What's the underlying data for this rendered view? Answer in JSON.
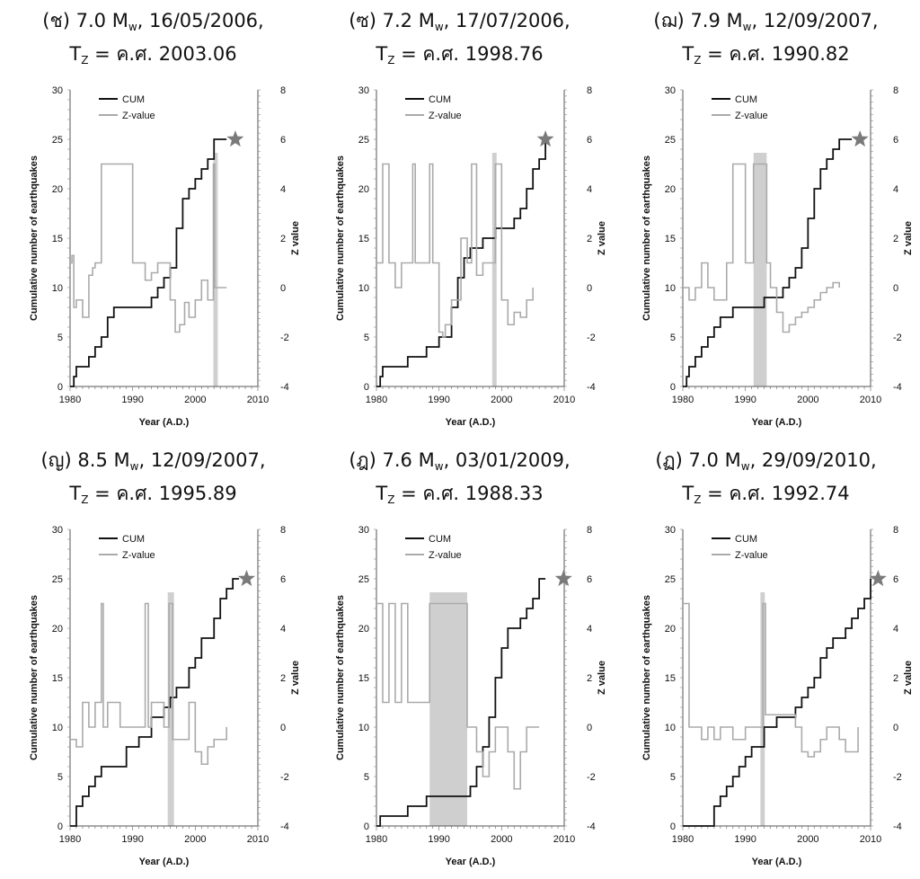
{
  "chart_data": [
    {
      "type": "line",
      "panel_label": "(ช)",
      "magnitude": "7.0",
      "mag_unit": "M",
      "mag_sub": "w",
      "date": "16/05/2006",
      "tz_label": "T",
      "tz_sub": "Z",
      "tz_value": "= ค.ศ. 2003.06",
      "xlabel": "Year (A.D.)",
      "ylabel": "Cumulative number of earthquakes",
      "y2label": "Z value",
      "xlim": [
        1980,
        2010
      ],
      "ylim": [
        0,
        30
      ],
      "y2lim": [
        -4,
        8
      ],
      "xticks": [
        1980,
        1990,
        2000,
        2010
      ],
      "yticks": [
        0,
        5,
        10,
        15,
        20,
        25,
        30
      ],
      "y2ticks": [
        -4,
        -2,
        0,
        2,
        4,
        6,
        8
      ],
      "highlight": [
        2002.9,
        2003.6
      ],
      "event": [
        2006.4,
        25
      ],
      "series": [
        {
          "name": "CUM",
          "color": "#111111",
          "x": [
            1980,
            1980.6,
            1981,
            1982,
            1983,
            1984,
            1985,
            1986,
            1987,
            1992,
            1993,
            1994,
            1995,
            1996,
            1997,
            1998,
            1999,
            2000,
            2001,
            2002,
            2003,
            2004,
            2005
          ],
          "y": [
            0,
            1,
            2,
            2,
            3,
            4,
            5,
            7,
            8,
            8,
            9,
            10,
            11,
            12,
            16,
            19,
            20,
            21,
            22,
            23,
            25,
            25,
            25
          ]
        },
        {
          "name": "Z-value",
          "color": "#aaaaaa",
          "x": [
            1980,
            1980.3,
            1980.6,
            1981,
            1982,
            1983,
            1983.6,
            1984,
            1985,
            1990,
            1992,
            1993,
            1994,
            1995,
            1996,
            1996.8,
            1997.5,
            1998.3,
            1999,
            2000,
            2001,
            2002,
            2002.9,
            2003.1,
            2003.8,
            2005
          ],
          "y": [
            1,
            1.3,
            -0.8,
            -0.5,
            -1.2,
            0.5,
            0.8,
            1,
            5,
            1,
            0.3,
            0.6,
            1,
            1,
            -0.5,
            -1.8,
            -1.5,
            -0.6,
            -1.2,
            -0.5,
            0.3,
            -0.5,
            5,
            0,
            0,
            0
          ]
        }
      ]
    },
    {
      "type": "line",
      "panel_label": "(ซ)",
      "magnitude": "7.2",
      "mag_unit": "M",
      "mag_sub": "w",
      "date": "17/07/2006",
      "tz_label": "T",
      "tz_sub": "Z",
      "tz_value": "= ค.ศ. 1998.76",
      "xlabel": "Year (A.D.)",
      "ylabel": "Cumulative number of earthquakes",
      "y2label": "Z value",
      "xlim": [
        1980,
        2010
      ],
      "ylim": [
        0,
        30
      ],
      "y2lim": [
        -4,
        8
      ],
      "xticks": [
        1980,
        1990,
        2000,
        2010
      ],
      "yticks": [
        0,
        5,
        10,
        15,
        20,
        25,
        30
      ],
      "y2ticks": [
        -4,
        -2,
        0,
        2,
        4,
        6,
        8
      ],
      "highlight": [
        1998.5,
        1999.2
      ],
      "event": [
        2007,
        25
      ],
      "series": [
        {
          "name": "CUM",
          "color": "#111111",
          "x": [
            1980,
            1980.6,
            1981,
            1983,
            1985,
            1988,
            1990,
            1991,
            1992,
            1993,
            1994,
            1995,
            1997,
            1999,
            2000,
            2002,
            2003,
            2004,
            2005,
            2006,
            2007
          ],
          "y": [
            0,
            1,
            2,
            2,
            3,
            4,
            5,
            5,
            8,
            11,
            13,
            14,
            15,
            16,
            16,
            17,
            18,
            20,
            22,
            23,
            25
          ]
        },
        {
          "name": "Z-value",
          "color": "#aaaaaa",
          "x": [
            1980,
            1981,
            1982,
            1983,
            1984,
            1985,
            1985.8,
            1986.2,
            1987,
            1988.5,
            1989,
            1990,
            1990.6,
            1991,
            1992,
            1993.5,
            1994.5,
            1995.2,
            1996,
            1997,
            1999,
            2000,
            2001,
            2002,
            2003,
            2004,
            2005
          ],
          "y": [
            1,
            5,
            1,
            0,
            1,
            1,
            5,
            1,
            1,
            5,
            1,
            -1.8,
            -2,
            -1.5,
            -0.5,
            2,
            1,
            5,
            0.5,
            1,
            5,
            -0.5,
            -1.5,
            -1,
            -1.2,
            -0.5,
            0
          ]
        }
      ]
    },
    {
      "type": "line",
      "panel_label": "(ฌ)",
      "magnitude": "7.9",
      "mag_unit": "M",
      "mag_sub": "w",
      "date": "12/09/2007",
      "tz_label": "T",
      "tz_sub": "Z",
      "tz_value": "= ค.ศ. 1990.82",
      "xlabel": "Year (A.D.)",
      "ylabel": "Cumulative number of earthquakes",
      "y2label": "Z value",
      "xlim": [
        1980,
        2010
      ],
      "ylim": [
        0,
        30
      ],
      "y2lim": [
        -4,
        8
      ],
      "xticks": [
        1980,
        1990,
        2000,
        2010
      ],
      "yticks": [
        0,
        5,
        10,
        15,
        20,
        25,
        30
      ],
      "y2ticks": [
        -4,
        -2,
        0,
        2,
        4,
        6,
        8
      ],
      "highlight": [
        1991.3,
        1993.4
      ],
      "event": [
        2008.3,
        25
      ],
      "series": [
        {
          "name": "CUM",
          "color": "#111111",
          "x": [
            1980,
            1980.6,
            1981,
            1982,
            1983,
            1984,
            1985,
            1986,
            1987,
            1988,
            1990,
            1993,
            1995,
            1996,
            1997,
            1998,
            1999,
            2000,
            2001,
            2002,
            2003,
            2004,
            2005,
            2006,
            2007
          ],
          "y": [
            0,
            1,
            2,
            3,
            4,
            5,
            6,
            7,
            7,
            8,
            8,
            9,
            9,
            10,
            11,
            12,
            14,
            17,
            20,
            22,
            23,
            24,
            25,
            25,
            25
          ]
        },
        {
          "name": "Z-value",
          "color": "#aaaaaa",
          "x": [
            1980,
            1981,
            1982,
            1983,
            1984,
            1985,
            1987,
            1988,
            1990,
            1991.3,
            1993.4,
            1994,
            1995,
            1996,
            1997,
            1998,
            1999,
            2000,
            2001,
            2002,
            2003,
            2004,
            2005
          ],
          "y": [
            0,
            -0.5,
            0,
            1,
            0,
            -0.5,
            1,
            5,
            1,
            5,
            1,
            0,
            -1,
            -1.8,
            -1.5,
            -1.2,
            -1,
            -0.8,
            -0.5,
            -0.2,
            0,
            0.2,
            0
          ]
        }
      ]
    },
    {
      "type": "line",
      "panel_label": "(ญ)",
      "magnitude": "8.5",
      "mag_unit": "M",
      "mag_sub": "w",
      "date": "12/09/2007",
      "tz_label": "T",
      "tz_sub": "Z",
      "tz_value": "= ค.ศ. 1995.89",
      "xlabel": "Year (A.D.)",
      "ylabel": "Cumulative number of earthquakes",
      "y2label": "Z value",
      "xlim": [
        1980,
        2010
      ],
      "ylim": [
        0,
        30
      ],
      "y2lim": [
        -4,
        8
      ],
      "xticks": [
        1980,
        1990,
        2000,
        2010
      ],
      "yticks": [
        0,
        5,
        10,
        15,
        20,
        25,
        30
      ],
      "y2ticks": [
        -4,
        -2,
        0,
        2,
        4,
        6,
        8
      ],
      "highlight": [
        1995.6,
        1996.6
      ],
      "event": [
        2008.2,
        25
      ],
      "series": [
        {
          "name": "CUM",
          "color": "#111111",
          "x": [
            1980,
            1981,
            1982,
            1983,
            1984,
            1985,
            1987,
            1989,
            1991,
            1993,
            1995,
            1996,
            1997,
            1999,
            2000,
            2001,
            2003,
            2004,
            2005,
            2006,
            2007
          ],
          "y": [
            0,
            2,
            3,
            4,
            5,
            6,
            6,
            8,
            9,
            11,
            12,
            13,
            14,
            16,
            17,
            19,
            21,
            23,
            24,
            25,
            25
          ]
        },
        {
          "name": "Z-value",
          "color": "#aaaaaa",
          "x": [
            1980,
            1981,
            1982,
            1983,
            1984,
            1985,
            1985.3,
            1986,
            1988,
            1990,
            1992,
            1992.5,
            1993,
            1995,
            1995.8,
            1996.4,
            1997,
            1999,
            2000,
            2001,
            2002,
            2003,
            2005
          ],
          "y": [
            -0.5,
            -0.8,
            1,
            0,
            1,
            5,
            0,
            1,
            0,
            0,
            5,
            0,
            1,
            0,
            5,
            -0.5,
            -0.5,
            1,
            -1,
            -1.5,
            -0.8,
            -0.5,
            0
          ]
        }
      ]
    },
    {
      "type": "line",
      "panel_label": "(ฎ)",
      "magnitude": "7.6",
      "mag_unit": "M",
      "mag_sub": "w",
      "date": "03/01/2009",
      "tz_label": "T",
      "tz_sub": "Z",
      "tz_value": "= ค.ศ. 1988.33",
      "xlabel": "Year (A.D.)",
      "ylabel": "Cumulative number of earthquakes",
      "y2label": "Z value",
      "xlim": [
        1980,
        2010
      ],
      "ylim": [
        0,
        30
      ],
      "y2lim": [
        -4,
        8
      ],
      "xticks": [
        1980,
        1990,
        2000,
        2010
      ],
      "yticks": [
        0,
        5,
        10,
        15,
        20,
        25,
        30
      ],
      "y2ticks": [
        -4,
        -2,
        0,
        2,
        4,
        6,
        8
      ],
      "highlight": [
        1988.5,
        1994.5
      ],
      "event": [
        2009.9,
        25
      ],
      "series": [
        {
          "name": "CUM",
          "color": "#111111",
          "x": [
            1980,
            1980.6,
            1983,
            1985,
            1988,
            1994,
            1995,
            1996,
            1997,
            1998,
            1999,
            2000,
            2001,
            2003,
            2004,
            2005,
            2006,
            2007
          ],
          "y": [
            0,
            1,
            1,
            2,
            3,
            3,
            4,
            6,
            8,
            11,
            15,
            18,
            20,
            21,
            22,
            23,
            25,
            25
          ]
        },
        {
          "name": "Z-value",
          "color": "#aaaaaa",
          "x": [
            1980,
            1981,
            1982,
            1983,
            1984,
            1985,
            1988.5,
            1994.5,
            1996,
            1997,
            1998,
            1999,
            2000,
            2001,
            2002,
            2003,
            2004,
            2005,
            2006
          ],
          "y": [
            5,
            1,
            5,
            1,
            5,
            1,
            5,
            0,
            -1,
            -2,
            -1,
            0,
            0,
            -1,
            -2.5,
            -1,
            0,
            0,
            0
          ]
        }
      ]
    },
    {
      "type": "line",
      "panel_label": "(ฏ)",
      "magnitude": "7.0",
      "mag_unit": "M",
      "mag_sub": "w",
      "date": "29/09/2010",
      "tz_label": "T",
      "tz_sub": "Z",
      "tz_value": "= ค.ศ. 1992.74",
      "xlabel": "Year (A.D.)",
      "ylabel": "Cumulative number of earthquakes",
      "y2label": "Z value",
      "xlim": [
        1980,
        2010
      ],
      "ylim": [
        0,
        30
      ],
      "y2lim": [
        -4,
        8
      ],
      "xticks": [
        1980,
        1990,
        2000,
        2010
      ],
      "yticks": [
        0,
        5,
        10,
        15,
        20,
        25,
        30
      ],
      "y2ticks": [
        -4,
        -2,
        0,
        2,
        4,
        6,
        8
      ],
      "highlight": [
        1992.4,
        1993.1
      ],
      "event": [
        2011.2,
        25
      ],
      "series": [
        {
          "name": "CUM",
          "color": "#111111",
          "x": [
            1980,
            1984,
            1985,
            1986,
            1987,
            1988,
            1989,
            1990,
            1991,
            1993,
            1994,
            1995,
            1996,
            1997,
            1998,
            1999,
            2000,
            2001,
            2002,
            2003,
            2004,
            2005,
            2006,
            2007,
            2008,
            2009,
            2010
          ],
          "y": [
            0,
            0,
            2,
            3,
            4,
            5,
            6,
            7,
            8,
            10,
            10,
            11,
            11,
            11,
            12,
            13,
            14,
            15,
            17,
            18,
            19,
            19,
            20,
            21,
            22,
            23,
            25
          ]
        },
        {
          "name": "Z-value",
          "color": "#aaaaaa",
          "x": [
            1980,
            1981,
            1982,
            1983,
            1984,
            1985,
            1986,
            1988,
            1990,
            1992,
            1992.8,
            1993.2,
            1994,
            1996,
            1998,
            1999,
            2000,
            2001,
            2002,
            2003,
            2005,
            2006,
            2007,
            2008
          ],
          "y": [
            5,
            0,
            0,
            -0.5,
            0,
            -0.5,
            0,
            -0.5,
            0,
            0,
            5,
            0.5,
            0.5,
            0.5,
            0,
            -1,
            -1.2,
            -1,
            -0.5,
            0,
            -0.5,
            -1,
            -1,
            0
          ]
        }
      ]
    }
  ]
}
